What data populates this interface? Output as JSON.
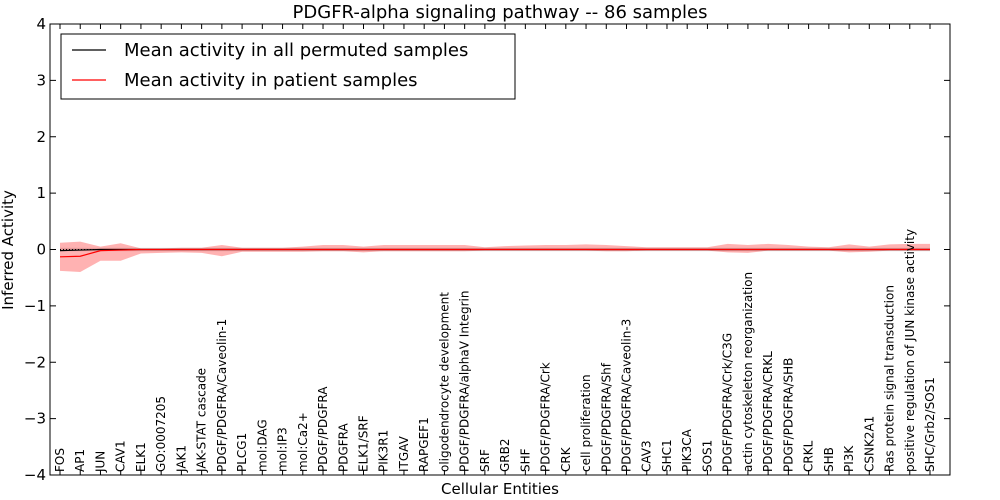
{
  "chart_data": {
    "type": "line",
    "title": "PDGFR-alpha signaling pathway -- 86 samples",
    "xlabel": "Cellular Entities",
    "ylabel": "Inferred Activity",
    "ylim": [
      -4,
      4
    ],
    "yticks": [
      "−4",
      "−3",
      "−2",
      "−1",
      "0",
      "1",
      "2",
      "3",
      "4"
    ],
    "ytick_values": [
      -4,
      -3,
      -2,
      -1,
      0,
      1,
      2,
      3,
      4
    ],
    "grid": false,
    "legend_position": "top-left",
    "categories": [
      "FOS",
      "AP1",
      "JUN",
      "CAV1",
      "ELK1",
      "GO:0007205",
      "JAK1",
      "JAK-STAT cascade",
      "PDGF/PDGFRA/Caveolin-1",
      "PLCG1",
      "mol:DAG",
      "mol:IP3",
      "mol:Ca2+",
      "PDGF/PDGFRA",
      "PDGFRA",
      "ELK1/SRF",
      "PIK3R1",
      "ITGAV",
      "RAPGEF1",
      "oligodendrocyte development",
      "PDGF/PDGFRA/alphaV Integrin",
      "SRF",
      "GRB2",
      "SHF",
      "PDGF/PDGFRA/Crk",
      "CRK",
      "cell proliferation",
      "PDGF/PDGFRA/Shf",
      "PDGF/PDGFRA/Caveolin-3",
      "CAV3",
      "SHC1",
      "PIK3CA",
      "SOS1",
      "PDGF/PDGFRA/Crk/C3G",
      "actin cytoskeleton reorganization",
      "PDGF/PDGFRA/CRKL",
      "PDGF/PDGFRA/SHB",
      "CRKL",
      "SHB",
      "PI3K",
      "CSNK2A1",
      "Ras protein signal transduction",
      "positive regulation of JUN kinase activity",
      "SHC/Grb2/SOS1"
    ],
    "series": [
      {
        "name": "Mean activity in all permuted samples",
        "color": "#000000",
        "values": [
          -0.02,
          -0.01,
          0.0,
          0.0,
          0.0,
          0.0,
          0.0,
          0.0,
          0.0,
          0.0,
          0.0,
          0.0,
          0.0,
          0.0,
          0.0,
          0.0,
          0.0,
          0.0,
          0.0,
          0.0,
          0.0,
          0.0,
          0.0,
          0.0,
          0.0,
          0.0,
          0.0,
          0.0,
          0.0,
          0.0,
          0.0,
          0.0,
          0.0,
          0.0,
          0.0,
          0.0,
          0.0,
          0.0,
          0.0,
          0.0,
          0.0,
          0.0,
          0.0,
          0.0
        ]
      },
      {
        "name": "Mean activity in patient samples",
        "color": "#ff0000",
        "values": [
          -0.13,
          -0.12,
          -0.02,
          -0.01,
          0.0,
          0.0,
          0.0,
          0.0,
          0.0,
          0.0,
          0.0,
          0.0,
          0.0,
          0.0,
          0.0,
          0.0,
          0.0,
          0.0,
          0.0,
          0.0,
          0.0,
          0.0,
          0.0,
          0.0,
          0.0,
          0.0,
          0.0,
          0.0,
          0.0,
          0.0,
          0.0,
          0.0,
          0.0,
          0.0,
          0.0,
          0.0,
          0.0,
          0.0,
          0.0,
          0.0,
          0.0,
          0.0,
          0.0,
          0.0
        ],
        "band_upper": [
          0.12,
          0.14,
          0.05,
          0.11,
          0.02,
          0.02,
          0.03,
          0.03,
          0.08,
          0.03,
          0.03,
          0.03,
          0.05,
          0.08,
          0.08,
          0.05,
          0.08,
          0.08,
          0.08,
          0.08,
          0.08,
          0.04,
          0.06,
          0.07,
          0.08,
          0.08,
          0.09,
          0.08,
          0.06,
          0.04,
          0.04,
          0.04,
          0.04,
          0.1,
          0.08,
          0.1,
          0.08,
          0.05,
          0.04,
          0.09,
          0.05,
          0.09,
          0.1,
          0.1
        ],
        "band_lower": [
          -0.38,
          -0.4,
          -0.2,
          -0.2,
          -0.07,
          -0.06,
          -0.05,
          -0.06,
          -0.12,
          -0.04,
          -0.04,
          -0.04,
          -0.04,
          -0.03,
          -0.03,
          -0.05,
          -0.03,
          -0.03,
          -0.03,
          -0.03,
          -0.03,
          -0.02,
          -0.02,
          -0.02,
          -0.02,
          -0.02,
          -0.02,
          -0.03,
          -0.03,
          -0.02,
          -0.02,
          -0.02,
          -0.02,
          -0.05,
          -0.06,
          -0.02,
          -0.02,
          -0.02,
          -0.02,
          -0.05,
          -0.04,
          -0.02,
          -0.02,
          -0.02
        ]
      }
    ],
    "permuted_band_upper": 0.03,
    "permuted_band_lower": -0.03
  }
}
